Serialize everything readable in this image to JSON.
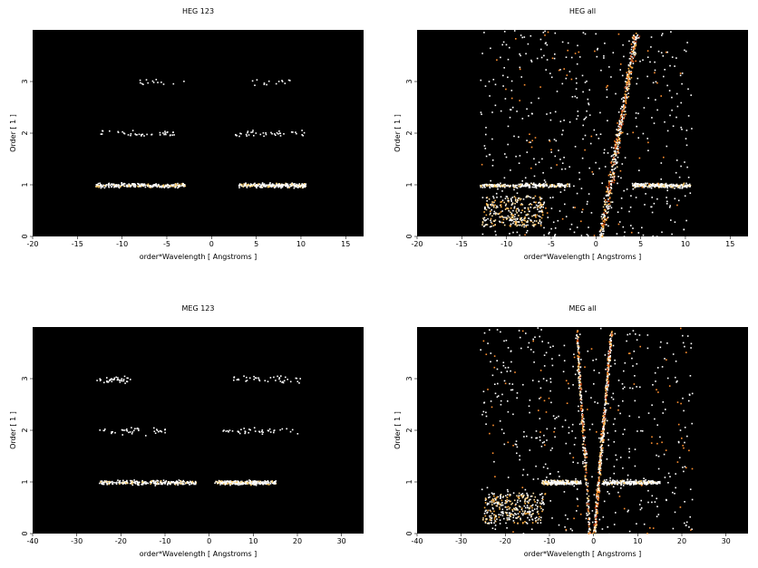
{
  "chart_data": [
    {
      "type": "heatmap",
      "title": "HEG 123",
      "xlabel": "order*Wavelength [ Angstroms ]",
      "ylabel": "Order [ 1 ]",
      "xlim": [
        -20,
        17
      ],
      "ylim": [
        0,
        4
      ],
      "xticks": [
        -20,
        -15,
        -10,
        -5,
        0,
        5,
        10,
        15
      ],
      "yticks": [
        0,
        1,
        2,
        3
      ],
      "background": "#000000",
      "bands": [
        {
          "order": 1,
          "x_ranges": [
            [
              -13,
              -3
            ],
            [
              3,
              10.5
            ]
          ],
          "density": "high"
        },
        {
          "order": 2,
          "x_ranges": [
            [
              -12.5,
              -4
            ],
            [
              2.5,
              10.5
            ]
          ],
          "density": "sparse"
        },
        {
          "order": 3,
          "x_ranges": [
            [
              -9,
              -3
            ],
            [
              3,
              9
            ]
          ],
          "density": "very-sparse"
        }
      ]
    },
    {
      "type": "heatmap",
      "title": "HEG all",
      "xlabel": "order*Wavelength [ Angstroms ]",
      "ylabel": "Order [ 1 ]",
      "xlim": [
        -20,
        17
      ],
      "ylim": [
        0,
        4
      ],
      "xticks": [
        -20,
        -15,
        -10,
        -5,
        0,
        5,
        10,
        15
      ],
      "yticks": [
        0,
        1,
        2,
        3
      ],
      "background": "#000000",
      "bands": [
        {
          "order": 1,
          "x_ranges": [
            [
              -13,
              -3
            ],
            [
              4,
              10.5
            ]
          ],
          "density": "high"
        }
      ],
      "streaks": [
        {
          "x_at_bottom": 0.5,
          "x_at_top": 4.5,
          "density": "high"
        }
      ]
    },
    {
      "type": "heatmap",
      "title": "MEG 123",
      "xlabel": "order*Wavelength [ Angstroms ]",
      "ylabel": "Order [ 1 ]",
      "xlim": [
        -40,
        35
      ],
      "ylim": [
        0,
        4
      ],
      "xticks": [
        -40,
        -30,
        -20,
        -10,
        0,
        10,
        20,
        30
      ],
      "yticks": [
        0,
        1,
        2,
        3
      ],
      "background": "#000000",
      "bands": [
        {
          "order": 1,
          "x_ranges": [
            [
              -25,
              -3
            ],
            [
              1,
              15
            ]
          ],
          "density": "high"
        },
        {
          "order": 2,
          "x_ranges": [
            [
              -25,
              -10
            ],
            [
              3,
              20
            ]
          ],
          "density": "sparse"
        },
        {
          "order": 3,
          "x_ranges": [
            [
              -26,
              -18
            ],
            [
              3,
              21
            ]
          ],
          "density": "sparse"
        }
      ]
    },
    {
      "type": "heatmap",
      "title": "MEG all",
      "xlabel": "order*Wavelength [ Angstroms ]",
      "ylabel": "Order [ 1 ]",
      "xlim": [
        -40,
        35
      ],
      "ylim": [
        0,
        4
      ],
      "xticks": [
        -40,
        -30,
        -20,
        -10,
        0,
        10,
        20,
        30
      ],
      "yticks": [
        0,
        1,
        2,
        3
      ],
      "background": "#000000",
      "bands": [
        {
          "order": 1,
          "x_ranges": [
            [
              -12,
              -3
            ],
            [
              2,
              15
            ]
          ],
          "density": "high"
        }
      ],
      "streaks": [
        {
          "x_at_bottom": 0,
          "x_at_top": 4,
          "density": "high"
        },
        {
          "x_at_bottom": -1,
          "x_at_top": -4,
          "density": "medium"
        }
      ]
    }
  ]
}
